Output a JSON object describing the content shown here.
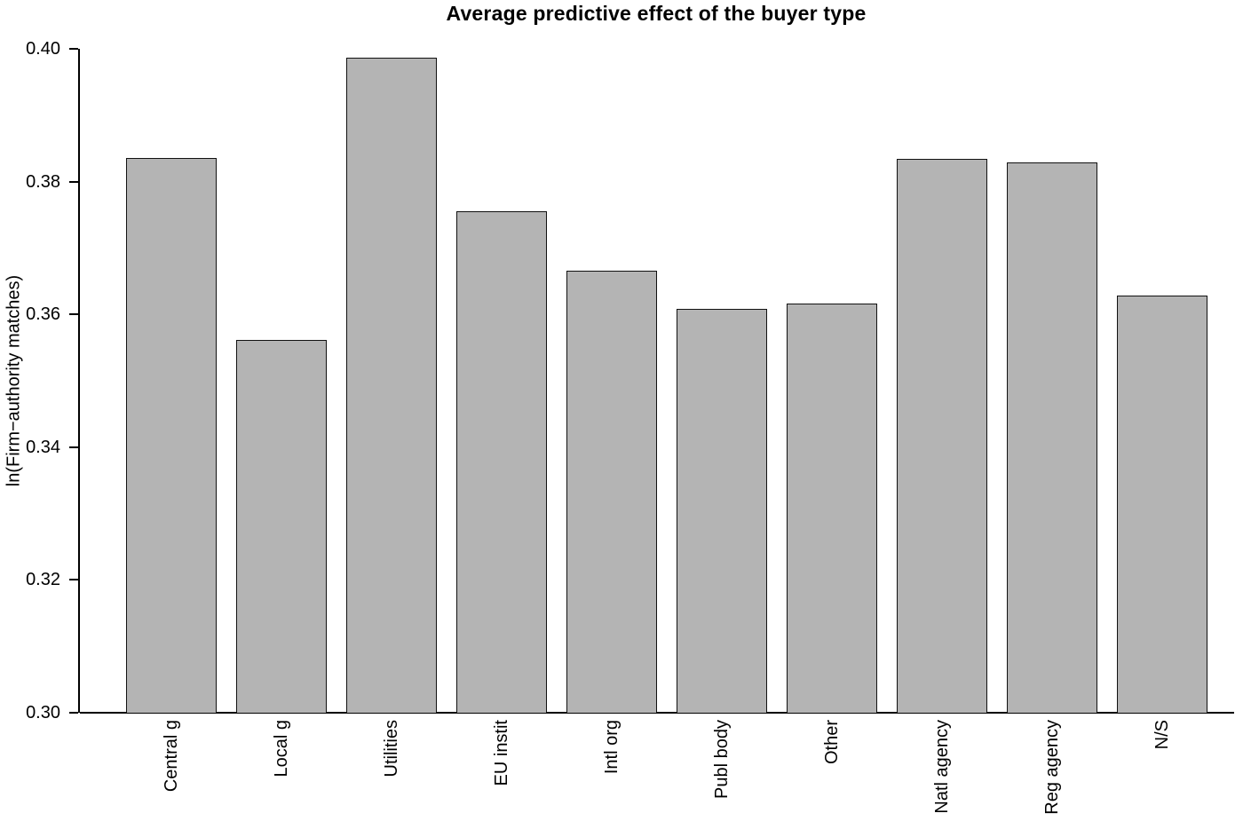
{
  "chart_data": {
    "type": "bar",
    "title": "Average predictive effect of the buyer type",
    "xlabel": "",
    "ylabel": "ln(Firm−authority matches)",
    "categories": [
      "Central g",
      "Local g",
      "Utilities",
      "EU instit",
      "Intl org",
      "Publ body",
      "Other",
      "Natl agency",
      "Reg agency",
      "N/S"
    ],
    "values": [
      0.3836,
      0.3562,
      0.3987,
      0.3756,
      0.3666,
      0.3608,
      0.3616,
      0.3834,
      0.3829,
      0.3629
    ],
    "ylim": [
      0.3,
      0.4
    ],
    "yticks": [
      0.3,
      0.32,
      0.34,
      0.36,
      0.38,
      0.4
    ],
    "ytick_labels": [
      "0.30",
      "0.32",
      "0.34",
      "0.36",
      "0.38",
      "0.40"
    ],
    "grid": false,
    "legend": null,
    "bar_color": "#b4b4b4",
    "bar_border_color": "#111111",
    "axis_color": "#000000",
    "background_color": "#ffffff"
  }
}
